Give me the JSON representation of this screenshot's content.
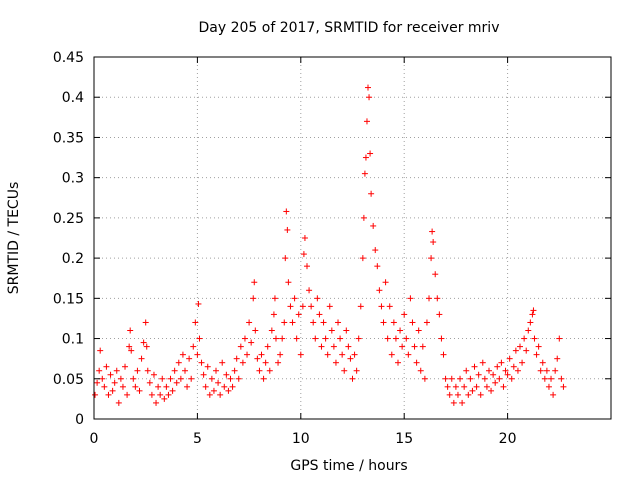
{
  "chart_data": {
    "type": "scatter",
    "title": "Day 205 of 2017, SRMTID for receiver mriv",
    "xlabel": "GPS time / hours",
    "ylabel": "SRMTID / TECUs",
    "xlim": [
      0,
      25
    ],
    "ylim": [
      0,
      0.45
    ],
    "xticks": [
      0,
      5,
      10,
      15,
      20
    ],
    "xtick_labels": [
      "0",
      "5",
      "10",
      "15",
      "20"
    ],
    "yticks": [
      0,
      0.05,
      0.1,
      0.15,
      0.2,
      0.25,
      0.3,
      0.35,
      0.4,
      0.45
    ],
    "ytick_labels": [
      "0",
      "0.05",
      "0.1",
      "0.15",
      "0.2",
      "0.25",
      "0.3",
      "0.35",
      "0.4",
      "0.45"
    ],
    "grid": true,
    "marker": "+",
    "color": "#ff0000",
    "series": [
      {
        "name": "SRMTID",
        "points": [
          [
            0.05,
            0.03
          ],
          [
            0.15,
            0.045
          ],
          [
            0.25,
            0.06
          ],
          [
            0.3,
            0.085
          ],
          [
            0.4,
            0.05
          ],
          [
            0.5,
            0.04
          ],
          [
            0.6,
            0.065
          ],
          [
            0.7,
            0.03
          ],
          [
            0.8,
            0.055
          ],
          [
            0.9,
            0.035
          ],
          [
            1.0,
            0.045
          ],
          [
            1.1,
            0.06
          ],
          [
            1.2,
            0.02
          ],
          [
            1.3,
            0.05
          ],
          [
            1.4,
            0.04
          ],
          [
            1.5,
            0.065
          ],
          [
            1.6,
            0.03
          ],
          [
            1.7,
            0.09
          ],
          [
            1.75,
            0.11
          ],
          [
            1.8,
            0.085
          ],
          [
            1.9,
            0.05
          ],
          [
            2.0,
            0.04
          ],
          [
            2.1,
            0.06
          ],
          [
            2.2,
            0.035
          ],
          [
            2.3,
            0.075
          ],
          [
            2.4,
            0.095
          ],
          [
            2.5,
            0.12
          ],
          [
            2.55,
            0.09
          ],
          [
            2.6,
            0.06
          ],
          [
            2.7,
            0.045
          ],
          [
            2.8,
            0.03
          ],
          [
            2.9,
            0.055
          ],
          [
            3.0,
            0.02
          ],
          [
            3.1,
            0.04
          ],
          [
            3.2,
            0.03
          ],
          [
            3.3,
            0.05
          ],
          [
            3.4,
            0.025
          ],
          [
            3.5,
            0.04
          ],
          [
            3.6,
            0.03
          ],
          [
            3.7,
            0.05
          ],
          [
            3.8,
            0.035
          ],
          [
            3.9,
            0.06
          ],
          [
            4.0,
            0.045
          ],
          [
            4.1,
            0.07
          ],
          [
            4.2,
            0.05
          ],
          [
            4.3,
            0.08
          ],
          [
            4.4,
            0.06
          ],
          [
            4.5,
            0.04
          ],
          [
            4.6,
            0.075
          ],
          [
            4.7,
            0.05
          ],
          [
            4.8,
            0.09
          ],
          [
            4.9,
            0.12
          ],
          [
            5.0,
            0.08
          ],
          [
            5.05,
            0.143
          ],
          [
            5.1,
            0.1
          ],
          [
            5.2,
            0.07
          ],
          [
            5.3,
            0.055
          ],
          [
            5.4,
            0.04
          ],
          [
            5.5,
            0.065
          ],
          [
            5.6,
            0.03
          ],
          [
            5.7,
            0.05
          ],
          [
            5.8,
            0.035
          ],
          [
            5.9,
            0.06
          ],
          [
            6.0,
            0.045
          ],
          [
            6.1,
            0.03
          ],
          [
            6.2,
            0.07
          ],
          [
            6.3,
            0.04
          ],
          [
            6.4,
            0.055
          ],
          [
            6.5,
            0.035
          ],
          [
            6.6,
            0.05
          ],
          [
            6.7,
            0.04
          ],
          [
            6.8,
            0.06
          ],
          [
            6.9,
            0.075
          ],
          [
            7.0,
            0.05
          ],
          [
            7.1,
            0.09
          ],
          [
            7.2,
            0.07
          ],
          [
            7.3,
            0.1
          ],
          [
            7.4,
            0.08
          ],
          [
            7.5,
            0.12
          ],
          [
            7.6,
            0.095
          ],
          [
            7.7,
            0.15
          ],
          [
            7.75,
            0.17
          ],
          [
            7.8,
            0.11
          ],
          [
            7.9,
            0.075
          ],
          [
            8.0,
            0.06
          ],
          [
            8.1,
            0.08
          ],
          [
            8.2,
            0.05
          ],
          [
            8.3,
            0.07
          ],
          [
            8.4,
            0.09
          ],
          [
            8.5,
            0.06
          ],
          [
            8.6,
            0.11
          ],
          [
            8.7,
            0.13
          ],
          [
            8.75,
            0.15
          ],
          [
            8.8,
            0.1
          ],
          [
            8.9,
            0.07
          ],
          [
            9.0,
            0.08
          ],
          [
            9.1,
            0.1
          ],
          [
            9.2,
            0.12
          ],
          [
            9.25,
            0.2
          ],
          [
            9.3,
            0.258
          ],
          [
            9.35,
            0.235
          ],
          [
            9.4,
            0.17
          ],
          [
            9.5,
            0.14
          ],
          [
            9.6,
            0.12
          ],
          [
            9.7,
            0.15
          ],
          [
            9.8,
            0.1
          ],
          [
            9.9,
            0.13
          ],
          [
            10.0,
            0.08
          ],
          [
            10.1,
            0.14
          ],
          [
            10.15,
            0.205
          ],
          [
            10.2,
            0.225
          ],
          [
            10.3,
            0.19
          ],
          [
            10.4,
            0.16
          ],
          [
            10.5,
            0.14
          ],
          [
            10.6,
            0.12
          ],
          [
            10.7,
            0.1
          ],
          [
            10.8,
            0.15
          ],
          [
            10.9,
            0.13
          ],
          [
            11.0,
            0.09
          ],
          [
            11.1,
            0.12
          ],
          [
            11.2,
            0.1
          ],
          [
            11.3,
            0.08
          ],
          [
            11.4,
            0.14
          ],
          [
            11.5,
            0.11
          ],
          [
            11.6,
            0.09
          ],
          [
            11.7,
            0.07
          ],
          [
            11.8,
            0.12
          ],
          [
            11.9,
            0.1
          ],
          [
            12.0,
            0.08
          ],
          [
            12.1,
            0.06
          ],
          [
            12.2,
            0.11
          ],
          [
            12.3,
            0.09
          ],
          [
            12.4,
            0.075
          ],
          [
            12.5,
            0.05
          ],
          [
            12.6,
            0.08
          ],
          [
            12.7,
            0.06
          ],
          [
            12.8,
            0.1
          ],
          [
            12.9,
            0.14
          ],
          [
            13.0,
            0.2
          ],
          [
            13.05,
            0.25
          ],
          [
            13.1,
            0.305
          ],
          [
            13.15,
            0.325
          ],
          [
            13.2,
            0.37
          ],
          [
            13.25,
            0.412
          ],
          [
            13.3,
            0.4
          ],
          [
            13.35,
            0.33
          ],
          [
            13.4,
            0.28
          ],
          [
            13.5,
            0.24
          ],
          [
            13.6,
            0.21
          ],
          [
            13.7,
            0.19
          ],
          [
            13.8,
            0.16
          ],
          [
            13.9,
            0.14
          ],
          [
            14.0,
            0.12
          ],
          [
            14.1,
            0.17
          ],
          [
            14.2,
            0.1
          ],
          [
            14.3,
            0.14
          ],
          [
            14.4,
            0.08
          ],
          [
            14.5,
            0.12
          ],
          [
            14.6,
            0.1
          ],
          [
            14.7,
            0.07
          ],
          [
            14.8,
            0.11
          ],
          [
            14.9,
            0.09
          ],
          [
            15.0,
            0.13
          ],
          [
            15.1,
            0.1
          ],
          [
            15.2,
            0.08
          ],
          [
            15.3,
            0.15
          ],
          [
            15.4,
            0.12
          ],
          [
            15.5,
            0.09
          ],
          [
            15.6,
            0.07
          ],
          [
            15.7,
            0.11
          ],
          [
            15.8,
            0.06
          ],
          [
            15.9,
            0.09
          ],
          [
            16.0,
            0.05
          ],
          [
            16.1,
            0.12
          ],
          [
            16.2,
            0.15
          ],
          [
            16.3,
            0.2
          ],
          [
            16.35,
            0.233
          ],
          [
            16.4,
            0.22
          ],
          [
            16.5,
            0.18
          ],
          [
            16.6,
            0.15
          ],
          [
            16.7,
            0.13
          ],
          [
            16.8,
            0.1
          ],
          [
            16.9,
            0.08
          ],
          [
            17.0,
            0.05
          ],
          [
            17.1,
            0.04
          ],
          [
            17.2,
            0.03
          ],
          [
            17.3,
            0.05
          ],
          [
            17.4,
            0.02
          ],
          [
            17.5,
            0.04
          ],
          [
            17.6,
            0.03
          ],
          [
            17.7,
            0.05
          ],
          [
            17.8,
            0.02
          ],
          [
            17.9,
            0.04
          ],
          [
            18.0,
            0.06
          ],
          [
            18.1,
            0.03
          ],
          [
            18.2,
            0.05
          ],
          [
            18.3,
            0.035
          ],
          [
            18.4,
            0.065
          ],
          [
            18.5,
            0.04
          ],
          [
            18.6,
            0.055
          ],
          [
            18.7,
            0.03
          ],
          [
            18.8,
            0.07
          ],
          [
            18.9,
            0.05
          ],
          [
            19.0,
            0.04
          ],
          [
            19.1,
            0.06
          ],
          [
            19.2,
            0.035
          ],
          [
            19.3,
            0.055
          ],
          [
            19.4,
            0.045
          ],
          [
            19.5,
            0.065
          ],
          [
            19.6,
            0.05
          ],
          [
            19.7,
            0.07
          ],
          [
            19.8,
            0.04
          ],
          [
            19.9,
            0.06
          ],
          [
            20.0,
            0.055
          ],
          [
            20.1,
            0.075
          ],
          [
            20.2,
            0.05
          ],
          [
            20.3,
            0.065
          ],
          [
            20.4,
            0.085
          ],
          [
            20.5,
            0.06
          ],
          [
            20.6,
            0.09
          ],
          [
            20.7,
            0.07
          ],
          [
            20.8,
            0.1
          ],
          [
            20.9,
            0.085
          ],
          [
            21.0,
            0.11
          ],
          [
            21.1,
            0.12
          ],
          [
            21.2,
            0.13
          ],
          [
            21.25,
            0.135
          ],
          [
            21.3,
            0.1
          ],
          [
            21.4,
            0.08
          ],
          [
            21.5,
            0.09
          ],
          [
            21.6,
            0.06
          ],
          [
            21.7,
            0.07
          ],
          [
            21.8,
            0.05
          ],
          [
            21.9,
            0.06
          ],
          [
            22.0,
            0.04
          ],
          [
            22.1,
            0.05
          ],
          [
            22.2,
            0.03
          ],
          [
            22.3,
            0.06
          ],
          [
            22.4,
            0.075
          ],
          [
            22.5,
            0.1
          ],
          [
            22.6,
            0.05
          ],
          [
            22.7,
            0.04
          ]
        ]
      }
    ]
  }
}
